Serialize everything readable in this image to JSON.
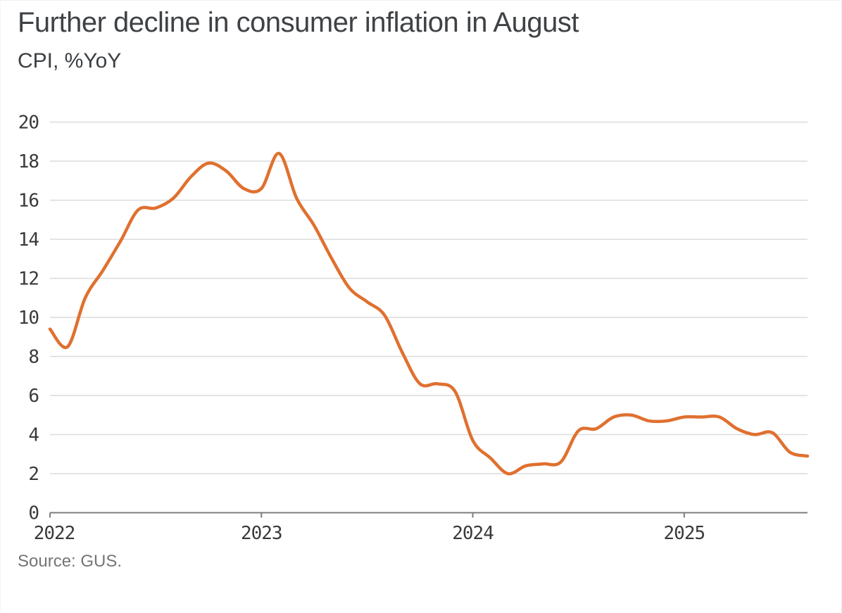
{
  "header": {
    "title": "Further decline in consumer inflation in August",
    "subtitle": "CPI, %YoY"
  },
  "footer": {
    "source": "Source: GUS."
  },
  "chart_data": {
    "type": "line",
    "title": "Further decline in consumer inflation in August",
    "ylabel": "CPI, %YoY",
    "xlabel": "",
    "legend_position": "none",
    "grid": "horizontal",
    "ylim": [
      0,
      20
    ],
    "ytick_step": 2,
    "yticks": [
      20,
      18,
      16,
      14,
      12,
      10,
      8,
      6,
      4,
      2,
      0
    ],
    "xticks": [
      {
        "label": "2022",
        "month_index": 0
      },
      {
        "label": "2023",
        "month_index": 12
      },
      {
        "label": "2024",
        "month_index": 24
      },
      {
        "label": "2025",
        "month_index": 36
      }
    ],
    "x": [
      "Jan 2022",
      "Feb 2022",
      "Mar 2022",
      "Apr 2022",
      "May 2022",
      "Jun 2022",
      "Jul 2022",
      "Aug 2022",
      "Sep 2022",
      "Oct 2022",
      "Nov 2022",
      "Dec 2022",
      "Jan 2023",
      "Feb 2023",
      "Mar 2023",
      "Apr 2023",
      "May 2023",
      "Jun 2023",
      "Jul 2023",
      "Aug 2023",
      "Sep 2023",
      "Oct 2023",
      "Nov 2023",
      "Dec 2023",
      "Jan 2024",
      "Feb 2024",
      "Mar 2024",
      "Apr 2024",
      "May 2024",
      "Jun 2024",
      "Jul 2024",
      "Aug 2024",
      "Sep 2024",
      "Oct 2024",
      "Nov 2024",
      "Dec 2024",
      "Jan 2025",
      "Feb 2025",
      "Mar 2025",
      "Apr 2025",
      "May 2025",
      "Jun 2025",
      "Jul 2025",
      "Aug 2025"
    ],
    "series": [
      {
        "name": "CPI %YoY",
        "values": [
          9.4,
          8.5,
          11.0,
          12.4,
          13.9,
          15.5,
          15.6,
          16.1,
          17.2,
          17.9,
          17.5,
          16.6,
          16.6,
          18.4,
          16.1,
          14.7,
          13.0,
          11.5,
          10.8,
          10.1,
          8.2,
          6.6,
          6.6,
          6.2,
          3.7,
          2.8,
          2.0,
          2.4,
          2.5,
          2.6,
          4.2,
          4.3,
          4.9,
          5.0,
          4.7,
          4.7,
          4.9,
          4.9,
          4.9,
          4.3,
          4.0,
          4.1,
          3.1,
          2.9
        ]
      }
    ],
    "colors": {
      "line": "#E0702F",
      "grid": "#DBDBDB",
      "axis": "#7D7D7D",
      "tick_text": "#3A3A3A"
    }
  }
}
